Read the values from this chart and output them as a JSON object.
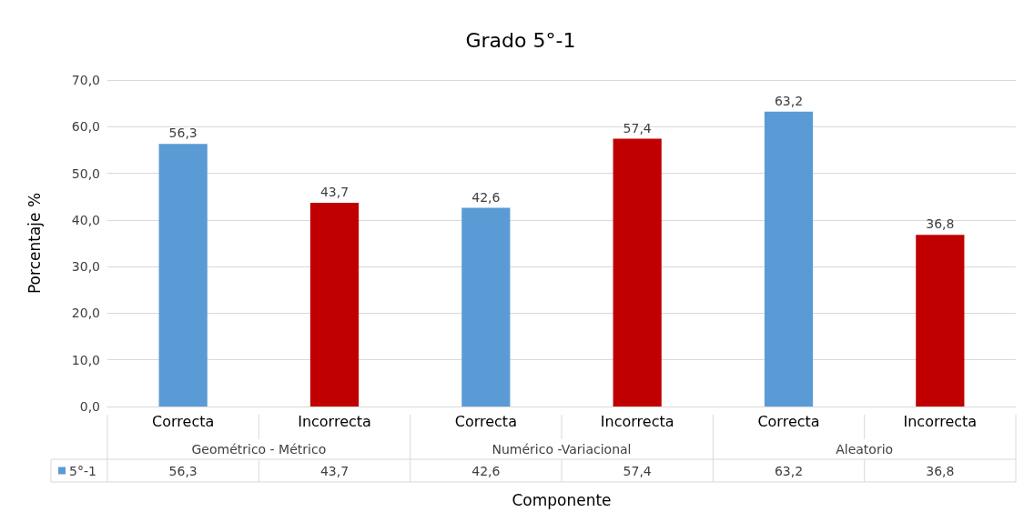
{
  "chart_data": {
    "type": "bar",
    "title": "Grado 5°-1",
    "xlabel": "Componente",
    "ylabel": "Porcentaje %",
    "categories": [
      "Correcta",
      "Incorrecta",
      "Correcta",
      "Incorrecta",
      "Correcta",
      "Incorrecta"
    ],
    "series": [
      {
        "name": "5°-1",
        "color": "#5b9bd5",
        "colors": [
          "#5b9bd5",
          "#c00000",
          "#5b9bd5",
          "#c00000",
          "#5b9bd5",
          "#c00000"
        ],
        "values": [
          56.3,
          43.7,
          42.6,
          57.4,
          63.2,
          36.8
        ],
        "value_labels": [
          "56,3",
          "43,7",
          "42,6",
          "57,4",
          "63,2",
          "36,8"
        ]
      }
    ],
    "annotations": [
      "Geométrico - Métrico",
      "Numérico -Variacional",
      "Aleatorio"
    ],
    "ylim": [
      0,
      70
    ],
    "yticks": [
      {
        "value": 0,
        "label": "0,0"
      },
      {
        "value": 10,
        "label": "10,0"
      },
      {
        "value": 20,
        "label": "20,0"
      },
      {
        "value": 30,
        "label": "30,0"
      },
      {
        "value": 40,
        "label": "40,0"
      },
      {
        "value": 50,
        "label": "50,0"
      },
      {
        "value": 60,
        "label": "60,0"
      },
      {
        "value": 70,
        "label": "70,0"
      }
    ],
    "grid": "y",
    "legend": "bottom"
  }
}
